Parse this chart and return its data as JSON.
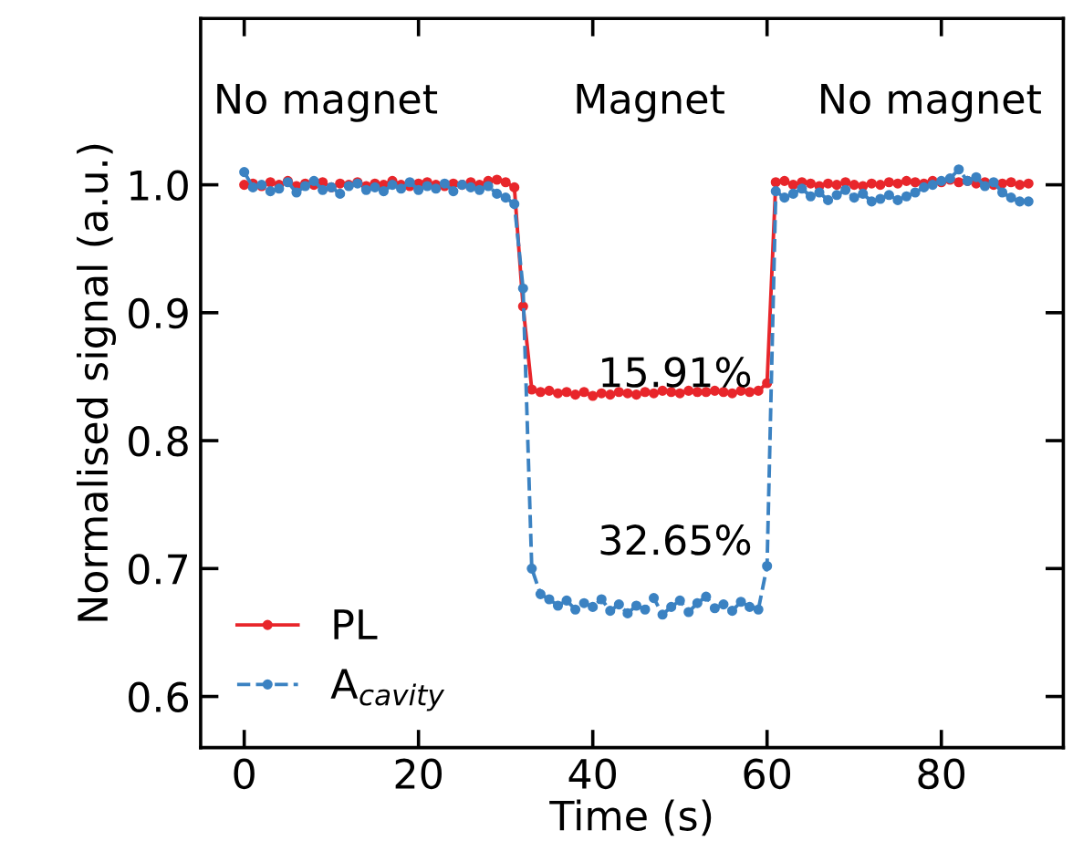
{
  "chart_data": {
    "type": "line",
    "xlabel": "Time (s)",
    "ylabel": "Normalised signal (a.u.)",
    "x": [
      0,
      1,
      2,
      3,
      4,
      5,
      6,
      7,
      8,
      9,
      10,
      11,
      12,
      13,
      14,
      15,
      16,
      17,
      18,
      19,
      20,
      21,
      22,
      23,
      24,
      25,
      26,
      27,
      28,
      29,
      30,
      31,
      32,
      33,
      34,
      35,
      36,
      37,
      38,
      39,
      40,
      41,
      42,
      43,
      44,
      45,
      46,
      47,
      48,
      49,
      50,
      51,
      52,
      53,
      54,
      55,
      56,
      57,
      58,
      59,
      60,
      61,
      62,
      63,
      64,
      65,
      66,
      67,
      68,
      69,
      70,
      71,
      72,
      73,
      74,
      75,
      76,
      77,
      78,
      79,
      80,
      81,
      82,
      83,
      84,
      85,
      86,
      87,
      88,
      89,
      90
    ],
    "series": [
      {
        "name": "PL",
        "color": "#e8262b",
        "line_style": "solid",
        "values": [
          1.0,
          1.001,
          0.999,
          1.002,
          1.0,
          1.003,
          0.999,
          1.001,
          1.0,
          1.002,
          0.998,
          1.001,
          1.0,
          1.002,
          0.999,
          1.001,
          1.0,
          1.003,
          1.0,
          0.999,
          1.001,
          1.002,
          1.0,
          0.999,
          1.001,
          1.0,
          1.002,
          1.0,
          1.003,
          1.004,
          1.002,
          0.998,
          0.905,
          0.84,
          0.838,
          0.839,
          0.837,
          0.838,
          0.836,
          0.838,
          0.835,
          0.837,
          0.836,
          0.838,
          0.837,
          0.836,
          0.838,
          0.837,
          0.839,
          0.838,
          0.837,
          0.839,
          0.838,
          0.838,
          0.839,
          0.838,
          0.837,
          0.839,
          0.838,
          0.839,
          0.845,
          1.002,
          1.003,
          1.0,
          1.002,
          1.001,
          0.999,
          1.001,
          1.0,
          1.002,
          1.0,
          0.999,
          1.001,
          1.0,
          1.002,
          1.001,
          1.003,
          1.002,
          1.001,
          1.003,
          1.002,
          1.004,
          1.002,
          1.003,
          1.001,
          1.002,
          1.0,
          1.001,
          1.002,
          1.0,
          1.001
        ]
      },
      {
        "name": "A$_{cavity}$",
        "color": "#3b82c2",
        "line_style": "dashed",
        "values": [
          1.01,
          0.998,
          1.0,
          0.995,
          0.997,
          1.002,
          0.994,
          0.999,
          1.003,
          0.996,
          0.998,
          0.993,
          0.999,
          1.001,
          0.996,
          0.998,
          0.995,
          1.0,
          0.997,
          1.002,
          0.996,
          0.999,
          0.997,
          1.001,
          0.995,
          1.0,
          0.998,
          0.996,
          0.999,
          0.993,
          0.99,
          0.985,
          0.919,
          0.7,
          0.68,
          0.676,
          0.671,
          0.675,
          0.668,
          0.673,
          0.67,
          0.676,
          0.667,
          0.672,
          0.665,
          0.671,
          0.668,
          0.677,
          0.664,
          0.67,
          0.675,
          0.666,
          0.673,
          0.678,
          0.669,
          0.672,
          0.667,
          0.674,
          0.67,
          0.668,
          0.702,
          0.995,
          0.99,
          0.993,
          0.997,
          0.991,
          0.994,
          0.988,
          0.992,
          0.996,
          0.99,
          0.993,
          0.987,
          0.989,
          0.992,
          0.988,
          0.991,
          0.994,
          0.998,
          1.0,
          1.003,
          1.005,
          1.012,
          1.003,
          1.006,
          0.999,
          1.002,
          0.994,
          0.99,
          0.987,
          0.987
        ]
      }
    ],
    "marker": "circle",
    "xlim": [
      -5,
      94
    ],
    "ylim": [
      0.56,
      1.13
    ],
    "xticks": [
      0,
      20,
      40,
      60,
      80
    ],
    "yticks": [
      {
        "value": 0.6,
        "label": "0.6"
      },
      {
        "value": 0.7,
        "label": "0.7"
      },
      {
        "value": 0.8,
        "label": "0.8"
      },
      {
        "value": 0.9,
        "label": "0.9"
      },
      {
        "value": 1.0,
        "label": "1.0"
      }
    ],
    "grid": false,
    "legend": "bottom left",
    "annotations": [
      "No magnet",
      "Magnet",
      "No magnet",
      "15.91%",
      "32.65%"
    ]
  }
}
